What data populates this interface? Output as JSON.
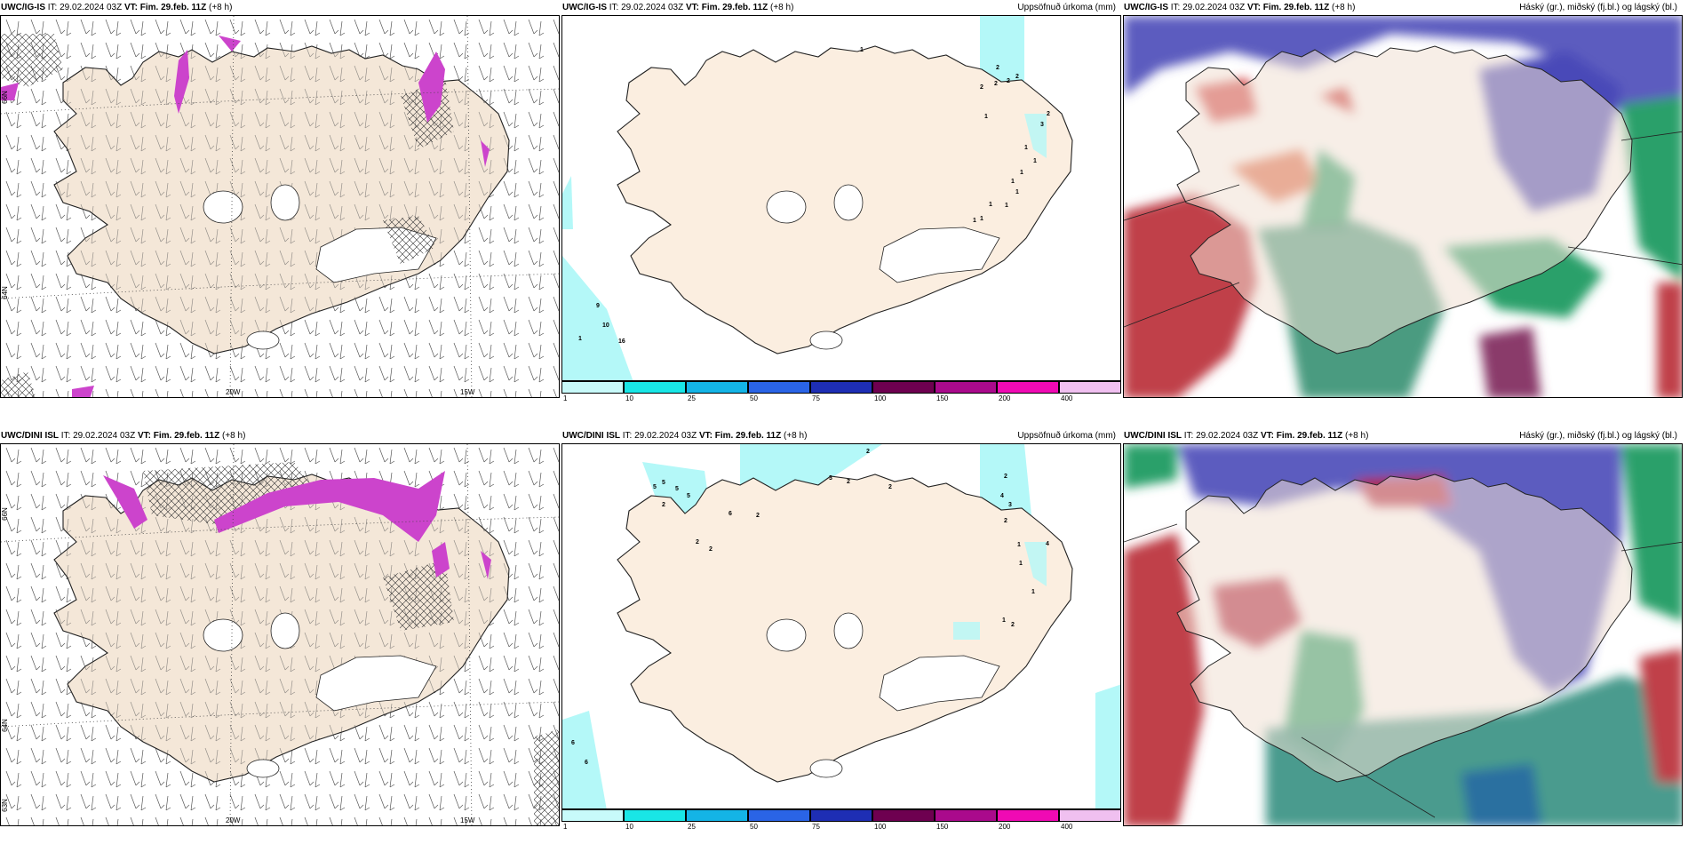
{
  "rows": [
    {
      "model": "UWC/IG-IS",
      "it_label": "IT:",
      "it": "29.02.2024 03Z",
      "vt_label": "VT:",
      "vt": "Fim. 29.feb. 11Z",
      "lead": "(+8 h)"
    },
    {
      "model": "UWC/DINI ISL",
      "it_label": "IT:",
      "it": "29.02.2024 03Z",
      "vt_label": "VT:",
      "vt": "Fim. 29.feb. 11Z",
      "lead": "(+8 h)"
    }
  ],
  "precip_title": "Uppsöfnuð úrkoma (mm)",
  "cloud_title": "Háský (gr.), miðský (fj.bl.) og lágský (bl.)",
  "colorbar": {
    "ticks": [
      "1",
      "10",
      "25",
      "50",
      "75",
      "100",
      "150",
      "200",
      "400"
    ],
    "colors": [
      "#c8fafa",
      "#19e6e6",
      "#14b4e6",
      "#2a64e6",
      "#1e2eb4",
      "#6e0050",
      "#aa0a8c",
      "#f00ab4",
      "#f0c0f0"
    ]
  },
  "axis_labels": {
    "lon_20w": "20W",
    "lon_15w": "15W",
    "lat_66n": "66N",
    "lat_64n": "64N",
    "lat_65n_top": "65N",
    "lat_64n_bottom": "64N",
    "lat_63n": "63N",
    "lat_66n_bottom": "66N"
  },
  "precip_numbers_top": [
    "1",
    "2",
    "2",
    "2",
    "2",
    "2",
    "2",
    "1",
    "3",
    "1",
    "1",
    "1",
    "1",
    "1",
    "1",
    "1",
    "1",
    "1",
    "9",
    "10",
    "16",
    "1"
  ],
  "precip_numbers_bottom": [
    "2",
    "3",
    "2",
    "2",
    "2",
    "5",
    "5",
    "5",
    "5",
    "2",
    "6",
    "2",
    "2",
    "2",
    "4",
    "3",
    "2",
    "4",
    "1",
    "1",
    "1",
    "1",
    "2",
    "6",
    "6"
  ],
  "colors": {
    "land": "#f4e7d8",
    "precip_land": "#fbeee0",
    "cyan_light": "#b4f8f8",
    "magenta": "#cc44cc",
    "cloud_high": "#4a4ab8",
    "cloud_mid": "#d44a4a",
    "cloud_low": "#2aa06a"
  }
}
